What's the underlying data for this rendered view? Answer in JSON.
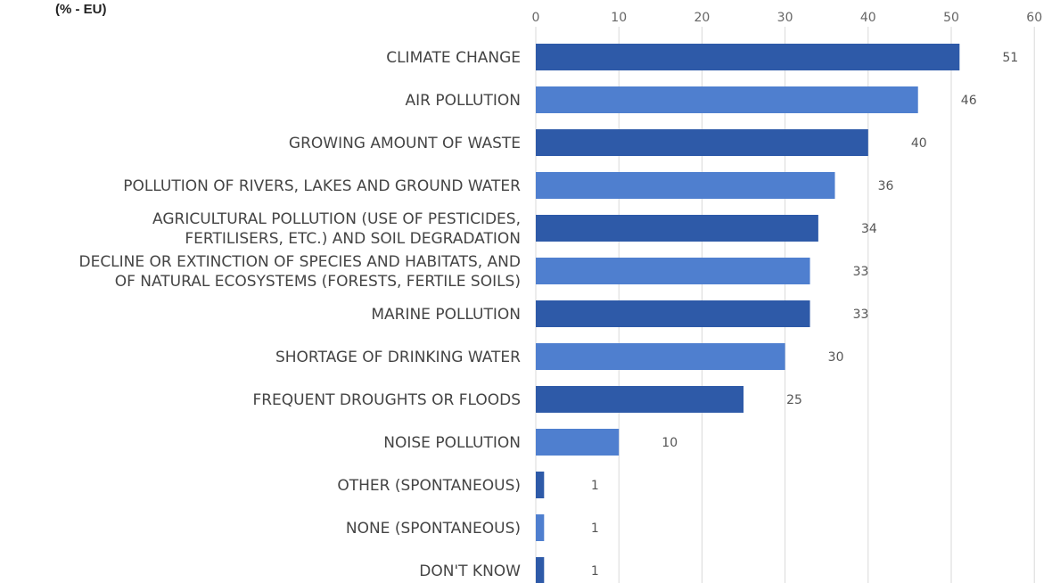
{
  "chart_data": {
    "type": "bar",
    "orientation": "horizontal",
    "subtitle": "(% - EU)",
    "xlim": [
      0,
      60
    ],
    "xticks": [
      0,
      10,
      20,
      30,
      40,
      50,
      60
    ],
    "grid": true,
    "categories": [
      [
        "CLIMATE CHANGE"
      ],
      [
        "AIR POLLUTION"
      ],
      [
        "GROWING AMOUNT OF WASTE"
      ],
      [
        "POLLUTION OF RIVERS, LAKES AND GROUND WATER"
      ],
      [
        "AGRICULTURAL POLLUTION (USE OF PESTICIDES,",
        "FERTILISERS, ETC.) AND SOIL DEGRADATION"
      ],
      [
        "DECLINE OR EXTINCTION OF SPECIES AND HABITATS, AND",
        "OF NATURAL ECOSYSTEMS (FORESTS, FERTILE SOILS)"
      ],
      [
        "MARINE POLLUTION"
      ],
      [
        "SHORTAGE OF DRINKING WATER"
      ],
      [
        "FREQUENT DROUGHTS OR FLOODS"
      ],
      [
        "NOISE POLLUTION"
      ],
      [
        "OTHER (SPONTANEOUS)"
      ],
      [
        "NONE (SPONTANEOUS)"
      ],
      [
        "DON'T KNOW"
      ]
    ],
    "values": [
      51,
      46,
      40,
      36,
      34,
      33,
      33,
      30,
      25,
      10,
      1,
      1,
      1
    ],
    "colors": {
      "dark": "#2e5aa8",
      "light": "#4f7fcf",
      "grid": "#d9d9d9"
    }
  }
}
